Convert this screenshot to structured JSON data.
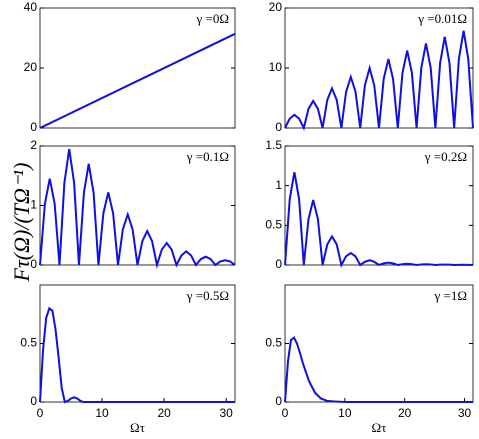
{
  "ylabel": "Fτ(Ω)/(TΩ⁻¹)",
  "chart_data": [
    {
      "type": "line",
      "annotation": "γ =0Ω",
      "xlim": [
        0,
        31.42
      ],
      "ylim": [
        0,
        40
      ],
      "yticks": [
        0,
        20,
        40
      ],
      "series": [
        {
          "color": "#1010e0",
          "x": [
            0,
            31.42
          ],
          "values": [
            0,
            31.4
          ]
        }
      ]
    },
    {
      "type": "line",
      "annotation": "γ =0.01Ω",
      "xlim": [
        0,
        31.42
      ],
      "ylim": [
        0,
        20
      ],
      "yticks": [
        0,
        10,
        20
      ],
      "series": [
        {
          "color": "#1010e0",
          "x": [
            0,
            0.79,
            1.57,
            2.36,
            3.14,
            3.93,
            4.71,
            5.5,
            6.28,
            7.07,
            7.85,
            8.64,
            9.42,
            10.21,
            11.0,
            11.78,
            12.57,
            13.35,
            14.14,
            14.92,
            15.71,
            16.49,
            17.28,
            18.06,
            18.85,
            19.63,
            20.42,
            21.21,
            21.99,
            22.78,
            23.56,
            24.35,
            25.13,
            25.92,
            26.7,
            27.49,
            28.27,
            29.06,
            29.85,
            30.63,
            31.42
          ],
          "values": [
            0,
            1.56,
            2.2,
            1.56,
            0,
            3.2,
            4.5,
            3.2,
            0,
            4.69,
            6.6,
            4.69,
            0,
            6.04,
            8.5,
            6.04,
            0,
            7.1,
            10.0,
            7.1,
            0,
            8.17,
            11.5,
            8.17,
            0,
            9.16,
            12.9,
            9.16,
            0,
            10.01,
            14.1,
            10.01,
            0,
            10.79,
            15.2,
            10.79,
            0,
            11.5,
            16.2,
            11.5,
            0
          ]
        }
      ]
    },
    {
      "type": "line",
      "annotation": "γ =0.1Ω",
      "xlim": [
        0,
        31.42
      ],
      "ylim": [
        0,
        2
      ],
      "yticks": [
        0,
        1,
        2
      ],
      "series": [
        {
          "color": "#1010e0",
          "x": [
            0,
            0.79,
            1.57,
            2.36,
            3.14,
            3.93,
            4.71,
            5.5,
            6.28,
            7.07,
            7.85,
            8.64,
            9.42,
            10.21,
            11.0,
            11.78,
            12.57,
            13.35,
            14.14,
            14.92,
            15.71,
            16.49,
            17.28,
            18.06,
            18.85,
            19.63,
            20.42,
            21.21,
            21.99,
            22.78,
            23.56,
            24.35,
            25.13,
            25.92,
            26.7,
            27.49,
            28.27,
            29.06,
            29.85,
            30.63,
            31.42
          ],
          "values": [
            0,
            1.03,
            1.45,
            1.03,
            0,
            1.38,
            1.95,
            1.38,
            0,
            1.21,
            1.7,
            1.21,
            0,
            0.87,
            1.22,
            0.87,
            0,
            0.6,
            0.85,
            0.6,
            0,
            0.4,
            0.57,
            0.4,
            0,
            0.26,
            0.37,
            0.26,
            0,
            0.16,
            0.23,
            0.16,
            0,
            0.1,
            0.14,
            0.1,
            0,
            0.06,
            0.08,
            0.06,
            0
          ]
        }
      ]
    },
    {
      "type": "line",
      "annotation": "γ =0.2Ω",
      "xlim": [
        0,
        31.42
      ],
      "ylim": [
        0,
        1.5
      ],
      "yticks": [
        0,
        0.5,
        1,
        1.5
      ],
      "series": [
        {
          "color": "#1010e0",
          "x": [
            0,
            0.79,
            1.57,
            2.36,
            3.14,
            3.93,
            4.71,
            5.5,
            6.28,
            7.07,
            7.85,
            8.64,
            9.42,
            10.21,
            11.0,
            11.78,
            12.57,
            13.35,
            14.14,
            14.92,
            15.71,
            16.49,
            17.28,
            18.06,
            18.85,
            19.63,
            20.42,
            21.21,
            21.99,
            22.78,
            23.56,
            24.35,
            25.13,
            25.92,
            26.7,
            27.49,
            28.27,
            29.06,
            29.85,
            30.63,
            31.42
          ],
          "values": [
            0,
            0.83,
            1.17,
            0.83,
            0,
            0.58,
            0.82,
            0.58,
            0,
            0.26,
            0.36,
            0.26,
            0,
            0.11,
            0.15,
            0.11,
            0,
            0.04,
            0.06,
            0.04,
            0,
            0.02,
            0.03,
            0.02,
            0,
            0.01,
            0.015,
            0.01,
            0,
            0.007,
            0.01,
            0.007,
            0,
            0.004,
            0.005,
            0.004,
            0,
            0.002,
            0.003,
            0.002,
            0
          ]
        }
      ]
    },
    {
      "type": "line",
      "annotation": "γ =0.5Ω",
      "xlabel": "Ωτ",
      "xlim": [
        0,
        31.42
      ],
      "ylim": [
        0,
        1
      ],
      "yticks": [
        0,
        0.5
      ],
      "xticks": [
        0,
        10,
        20,
        30
      ],
      "series": [
        {
          "color": "#1010e0",
          "x": [
            0,
            0.5,
            1,
            1.5,
            2,
            2.5,
            3,
            3.5,
            4,
            4.5,
            5,
            5.5,
            6,
            6.5,
            7,
            8,
            10,
            15,
            20,
            25,
            31.42
          ],
          "values": [
            0,
            0.45,
            0.72,
            0.8,
            0.78,
            0.62,
            0.38,
            0.12,
            0,
            0.01,
            0.03,
            0.04,
            0.03,
            0.01,
            0,
            0,
            0,
            0,
            0,
            0,
            0
          ]
        }
      ]
    },
    {
      "type": "line",
      "annotation": "γ =1Ω",
      "xlabel": "Ωτ",
      "xlim": [
        0,
        31.42
      ],
      "ylim": [
        0,
        1
      ],
      "yticks": [
        0,
        0.5
      ],
      "xticks": [
        0,
        10,
        20,
        30
      ],
      "series": [
        {
          "color": "#1010e0",
          "x": [
            0,
            0.5,
            1,
            1.5,
            2,
            2.5,
            3,
            4,
            5,
            6,
            7,
            8,
            10,
            15,
            20,
            31.42
          ],
          "values": [
            0,
            0.35,
            0.53,
            0.55,
            0.5,
            0.42,
            0.33,
            0.18,
            0.08,
            0.03,
            0.01,
            0.005,
            0,
            0,
            0,
            0
          ]
        }
      ]
    }
  ]
}
